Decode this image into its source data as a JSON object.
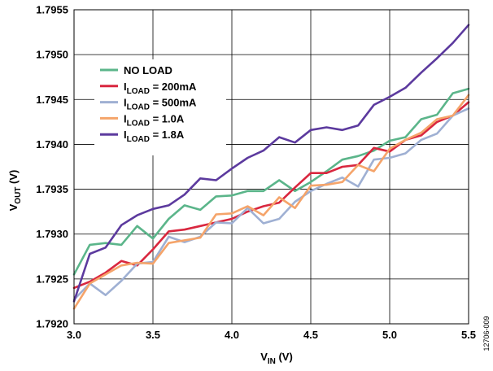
{
  "chart_data": {
    "type": "line",
    "xlabel": {
      "main": "V",
      "sub": "IN",
      "tail": " (V)"
    },
    "ylabel": {
      "main": "V",
      "sub": "OUT",
      "tail": " (V)"
    },
    "xlim": [
      3.0,
      5.5
    ],
    "ylim": [
      1.792,
      1.7955
    ],
    "x_ticks": [
      "3.0",
      "3.5",
      "4.0",
      "4.5",
      "5.0",
      "5.5"
    ],
    "y_ticks": [
      "1.7920",
      "1.7925",
      "1.7930",
      "1.7935",
      "1.7940",
      "1.7945",
      "1.7950",
      "1.7955"
    ],
    "grid": true,
    "legend_position": "top-left",
    "x": [
      3.0,
      3.1,
      3.2,
      3.3,
      3.4,
      3.5,
      3.6,
      3.7,
      3.8,
      3.9,
      4.0,
      4.1,
      4.2,
      4.3,
      4.4,
      4.5,
      4.6,
      4.7,
      4.8,
      4.9,
      5.0,
      5.1,
      5.2,
      5.3,
      5.4,
      5.5
    ],
    "series": [
      {
        "name": "NO LOAD",
        "legend": {
          "main": "NO LOAD",
          "sub": "",
          "tail": ""
        },
        "color": "#5bb58a",
        "values": [
          1.79255,
          1.79288,
          1.7929,
          1.79288,
          1.79309,
          1.79295,
          1.79317,
          1.79332,
          1.79327,
          1.79342,
          1.79343,
          1.79348,
          1.79348,
          1.7936,
          1.79348,
          1.79358,
          1.7937,
          1.79383,
          1.79387,
          1.79393,
          1.79404,
          1.79408,
          1.79428,
          1.79433,
          1.79457,
          1.79462
        ]
      },
      {
        "name": "ILOAD = 200mA",
        "legend": {
          "main": "I",
          "sub": "LOAD",
          "tail": " = 200mA"
        },
        "color": "#d9273f",
        "values": [
          1.7924,
          1.79247,
          1.79257,
          1.7927,
          1.79265,
          1.79283,
          1.79303,
          1.79305,
          1.79309,
          1.79313,
          1.79317,
          1.79325,
          1.79331,
          1.79335,
          1.79352,
          1.79368,
          1.79368,
          1.79375,
          1.79377,
          1.79396,
          1.79392,
          1.79405,
          1.7941,
          1.79425,
          1.79432,
          1.79447
        ]
      },
      {
        "name": "ILOAD = 500mA",
        "legend": {
          "main": "I",
          "sub": "LOAD",
          "tail": " = 500mA"
        },
        "color": "#9fb0d3",
        "values": [
          1.79227,
          1.79245,
          1.79232,
          1.79248,
          1.79267,
          1.79269,
          1.79297,
          1.79291,
          1.79297,
          1.79313,
          1.79312,
          1.79329,
          1.79312,
          1.79317,
          1.79336,
          1.79348,
          1.79356,
          1.79363,
          1.79353,
          1.79383,
          1.79385,
          1.7939,
          1.79405,
          1.79412,
          1.79432,
          1.7944
        ]
      },
      {
        "name": "ILOAD = 1.0A",
        "legend": {
          "main": "I",
          "sub": "LOAD",
          "tail": " = 1.0A"
        },
        "color": "#f5a46a",
        "values": [
          1.79217,
          1.79245,
          1.79255,
          1.79265,
          1.79268,
          1.79267,
          1.7929,
          1.79293,
          1.79296,
          1.79322,
          1.79323,
          1.79331,
          1.79321,
          1.79341,
          1.79329,
          1.79354,
          1.79355,
          1.79358,
          1.79377,
          1.7937,
          1.79395,
          1.79405,
          1.79413,
          1.79428,
          1.79432,
          1.79455
        ]
      },
      {
        "name": "ILOAD = 1.8A",
        "legend": {
          "main": "I",
          "sub": "LOAD",
          "tail": " = 1.8A"
        },
        "color": "#5c3a9e",
        "values": [
          1.79225,
          1.79278,
          1.79285,
          1.7931,
          1.79321,
          1.79328,
          1.79332,
          1.79344,
          1.79362,
          1.7936,
          1.79373,
          1.79385,
          1.79393,
          1.79408,
          1.79402,
          1.79416,
          1.79419,
          1.79416,
          1.79421,
          1.79444,
          1.79453,
          1.79463,
          1.7948,
          1.79496,
          1.79513,
          1.79533
        ]
      }
    ]
  },
  "figure_id": "12706-009"
}
